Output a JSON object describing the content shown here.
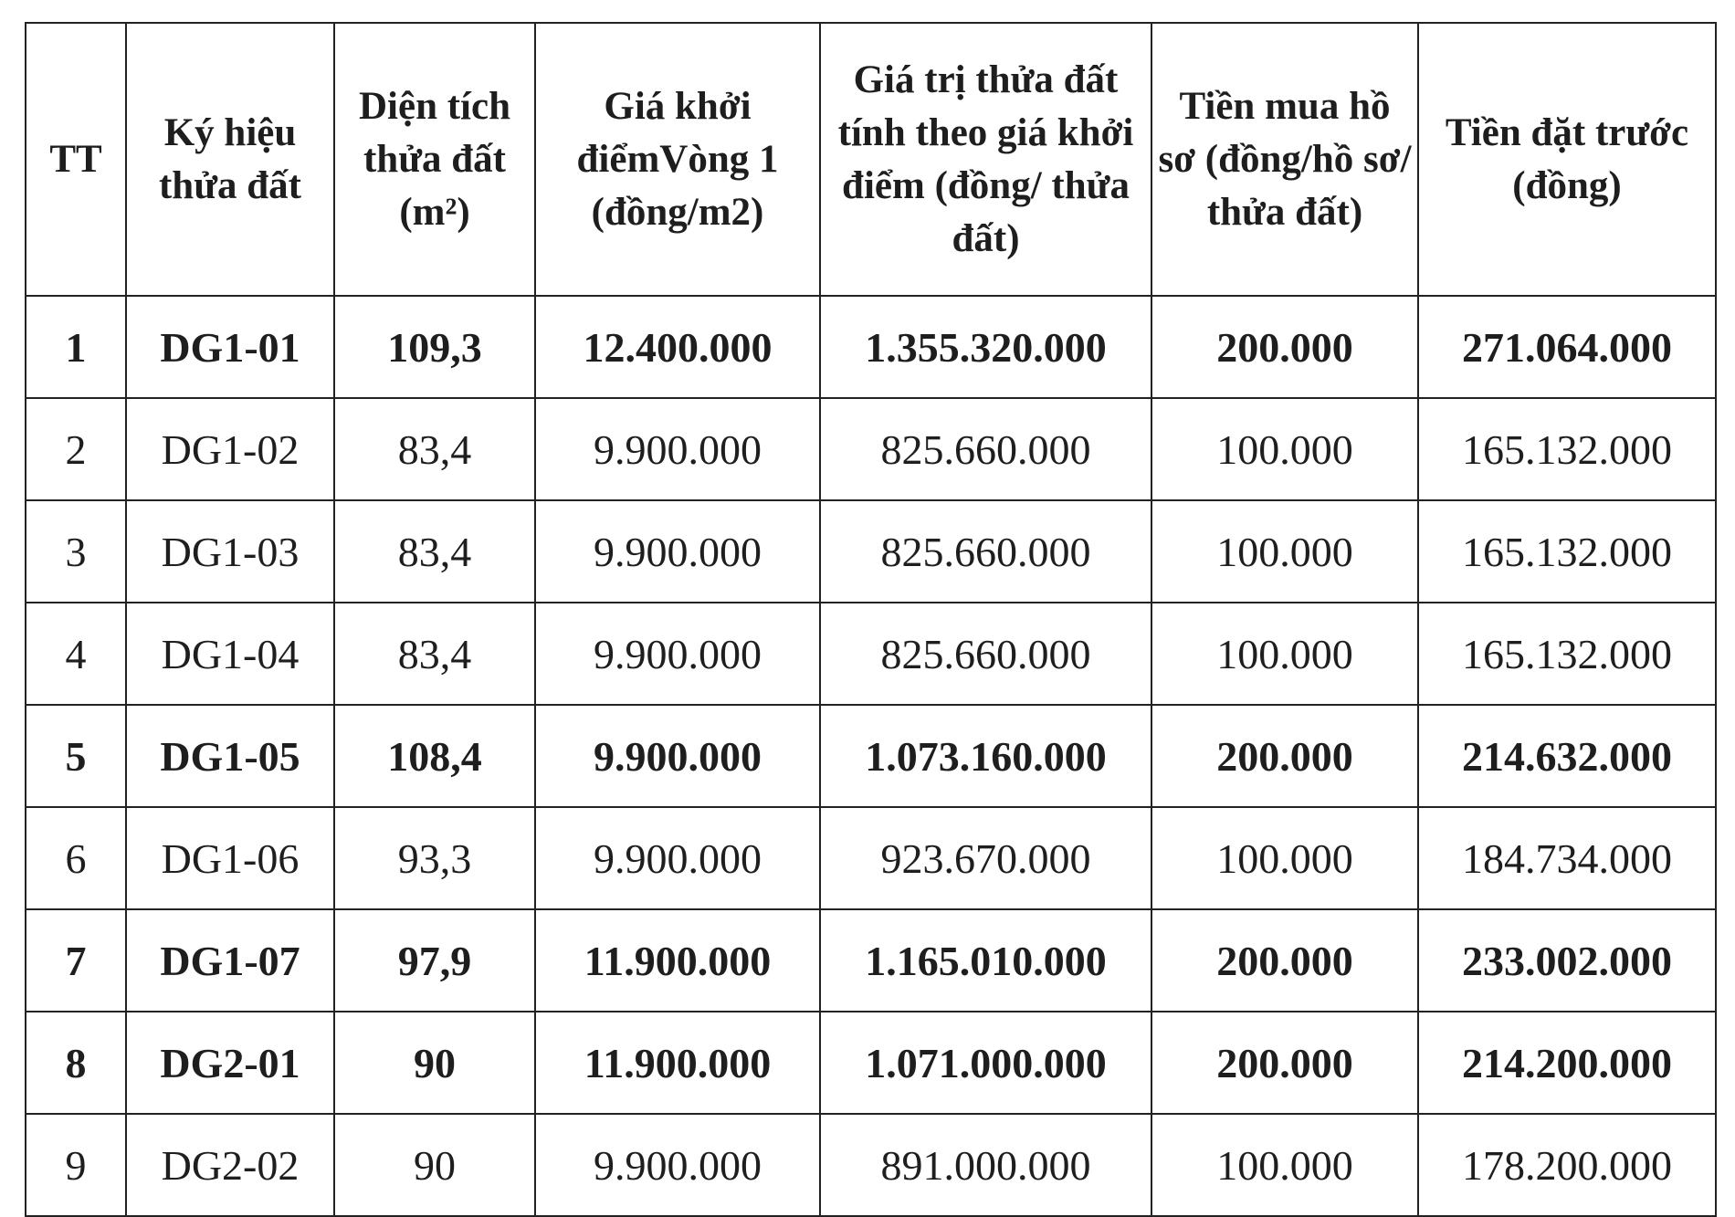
{
  "table": {
    "headers": [
      "TT",
      "Ký hiệu thửa đất",
      "Diện tích thửa đất (m²)",
      "Giá khởi điểmVòng 1 (đồng/m2)",
      "Giá trị thửa đất tính theo giá khởi điểm (đồng/ thửa đất)",
      "Tiền mua hồ sơ (đồng/hồ sơ/ thửa đất)",
      "Tiền đặt trước (đồng)"
    ],
    "rows": [
      {
        "bold": true,
        "cells": [
          "1",
          "DG1-01",
          "109,3",
          "12.400.000",
          "1.355.320.000",
          "200.000",
          "271.064.000"
        ]
      },
      {
        "bold": false,
        "cells": [
          "2",
          "DG1-02",
          "83,4",
          "9.900.000",
          "825.660.000",
          "100.000",
          "165.132.000"
        ]
      },
      {
        "bold": false,
        "cells": [
          "3",
          "DG1-03",
          "83,4",
          "9.900.000",
          "825.660.000",
          "100.000",
          "165.132.000"
        ]
      },
      {
        "bold": false,
        "cells": [
          "4",
          "DG1-04",
          "83,4",
          "9.900.000",
          "825.660.000",
          "100.000",
          "165.132.000"
        ]
      },
      {
        "bold": true,
        "cells": [
          "5",
          "DG1-05",
          "108,4",
          "9.900.000",
          "1.073.160.000",
          "200.000",
          "214.632.000"
        ]
      },
      {
        "bold": false,
        "cells": [
          "6",
          "DG1-06",
          "93,3",
          "9.900.000",
          "923.670.000",
          "100.000",
          "184.734.000"
        ]
      },
      {
        "bold": true,
        "cells": [
          "7",
          "DG1-07",
          "97,9",
          "11.900.000",
          "1.165.010.000",
          "200.000",
          "233.002.000"
        ]
      },
      {
        "bold": true,
        "cells": [
          "8",
          "DG2-01",
          "90",
          "11.900.000",
          "1.071.000.000",
          "200.000",
          "214.200.000"
        ]
      },
      {
        "bold": false,
        "cells": [
          "9",
          "DG2-02",
          "90",
          "9.900.000",
          "891.000.000",
          "100.000",
          "178.200.000"
        ]
      }
    ]
  }
}
